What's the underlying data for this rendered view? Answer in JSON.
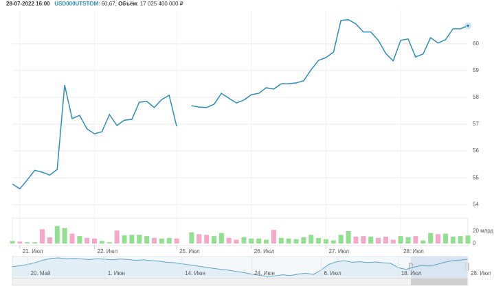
{
  "chart_data": {
    "type": "line",
    "header": {
      "datetime": "28-07-2022 16:00",
      "ticker": "USD000UTSTOM",
      "price_text": ": 60,67,",
      "volume_label": "Объём",
      "volume_text": ": 17 025 400 000 ₽"
    },
    "categories": [
      null,
      "21. Июл",
      null,
      null,
      null,
      null,
      null,
      null,
      null,
      null,
      null,
      "22. Июл",
      null,
      null,
      null,
      null,
      null,
      null,
      null,
      null,
      null,
      null,
      "25. Июл",
      null,
      null,
      null,
      null,
      null,
      null,
      null,
      null,
      null,
      "26. Июл",
      null,
      null,
      null,
      null,
      null,
      null,
      null,
      null,
      null,
      "27. Июл",
      null,
      null,
      null,
      null,
      null,
      null,
      null,
      null,
      null,
      "28. Июл",
      null,
      null,
      null,
      null,
      null,
      null,
      null,
      null,
      null
    ],
    "series": [
      {
        "name": "USD000UTSTOM",
        "color": "#2a8db3",
        "values": [
          54.77,
          54.59,
          54.92,
          55.28,
          55.21,
          55.1,
          55.31,
          58.46,
          57.21,
          57.33,
          56.82,
          56.64,
          56.72,
          57.36,
          56.95,
          57.15,
          57.18,
          57.82,
          57.85,
          57.62,
          57.92,
          58.08,
          56.92,
          null,
          57.69,
          57.64,
          57.62,
          57.74,
          58.15,
          57.97,
          57.79,
          57.9,
          58.1,
          58.15,
          58.36,
          58.31,
          58.51,
          58.51,
          58.54,
          58.62,
          59.03,
          59.38,
          59.49,
          59.69,
          60.87,
          60.9,
          60.74,
          60.44,
          60.44,
          60.13,
          59.64,
          59.36,
          60.13,
          60.18,
          59.51,
          59.62,
          60.23,
          60.03,
          60.15,
          60.56,
          60.56,
          60.67
        ]
      }
    ],
    "ylim": [
      53.7,
      61.25
    ],
    "yticks": [
      54,
      55,
      56,
      57,
      58,
      59,
      60
    ],
    "grid": true,
    "volume": {
      "up_color": "#90e090",
      "down_color": "#f7a6c8",
      "values": [
        4,
        3,
        2,
        2,
        23,
        10,
        28,
        25,
        16,
        12,
        9,
        8,
        4,
        2,
        21,
        13,
        14,
        14,
        12,
        9,
        8,
        9,
        8,
        null,
        18,
        15,
        14,
        12,
        17,
        9,
        6,
        10,
        8,
        8,
        6,
        22,
        9,
        8,
        7,
        10,
        14,
        9,
        7,
        5,
        14,
        20,
        11,
        12,
        11,
        9,
        11,
        6,
        12,
        10,
        12,
        5,
        17,
        15,
        16,
        11,
        12,
        13
      ],
      "ylim": [
        0,
        41
      ],
      "yticks": [
        0,
        {
          "value": 20,
          "label": "20 млрд"
        }
      ]
    },
    "navigator": {
      "categories": [
        null,
        null,
        "20. Май",
        null,
        null,
        null,
        null,
        null,
        null,
        null,
        null,
        null,
        "1. Июн",
        null,
        null,
        null,
        null,
        null,
        null,
        null,
        null,
        null,
        "14. Июн",
        null,
        null,
        null,
        null,
        null,
        null,
        null,
        null,
        "24. Июн",
        null,
        null,
        null,
        null,
        null,
        null,
        null,
        null,
        "6. Июл",
        null,
        null,
        null,
        null,
        null,
        null,
        null,
        null,
        null,
        "18. Июл",
        null,
        null,
        null,
        null,
        null,
        null,
        null,
        null,
        "28. Июл"
      ],
      "values": [
        58.0,
        58.3,
        58.8,
        59.5,
        60.4,
        61.0,
        61.2,
        60.9,
        61.0,
        60.8,
        60.6,
        60.9,
        60.7,
        60.5,
        60.8,
        60.6,
        60.3,
        60.5,
        60.2,
        60.0,
        59.6,
        59.4,
        59.0,
        58.6,
        58.2,
        57.8,
        57.4,
        57.0,
        56.7,
        56.2,
        55.8,
        55.2,
        54.8,
        54.4,
        54.6,
        55.0,
        54.7,
        55.2,
        55.6,
        55.1,
        56.8,
        58.8,
        59.8,
        60.2,
        59.6,
        59.8,
        59.5,
        59.7,
        59.4,
        59.2,
        57.6,
        57.0,
        57.8,
        58.4,
        58.2,
        58.8,
        59.6,
        60.2,
        60.4,
        60.7
      ]
    }
  }
}
